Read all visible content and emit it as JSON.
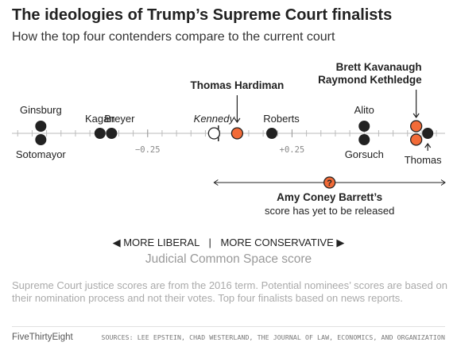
{
  "header": {
    "title": "The ideologies of Trump’s Supreme Court finalists",
    "subtitle": "How the top four contenders compare to the current court"
  },
  "chart_data": {
    "type": "scatter",
    "xlabel": "Judicial Common Space score",
    "xlim": [
      -0.72,
      0.78
    ],
    "ticks": [
      {
        "value": -0.25,
        "label": "−0.25"
      },
      {
        "value": 0.25,
        "label": "+0.25"
      }
    ],
    "justices": [
      {
        "name": "Ginsburg",
        "x": -0.62,
        "row": "top",
        "label_pos": "above",
        "group": "court"
      },
      {
        "name": "Sotomayor",
        "x": -0.62,
        "row": "bottom",
        "label_pos": "below",
        "group": "court"
      },
      {
        "name": "Kagan",
        "x": -0.415,
        "row": "middle",
        "label_pos": "above",
        "group": "court"
      },
      {
        "name": "Breyer",
        "x": -0.375,
        "row": "middle",
        "label_pos": "above",
        "group": "court"
      },
      {
        "name": "Kennedy",
        "x": -0.02,
        "row": "middle",
        "label_pos": "above",
        "group": "median"
      },
      {
        "name": "Thomas Hardiman",
        "x": 0.06,
        "row": "middle",
        "label_pos": "arrow",
        "group": "nominee"
      },
      {
        "name": "Roberts",
        "x": 0.18,
        "row": "middle",
        "label_pos": "above",
        "group": "court"
      },
      {
        "name": "Alito",
        "x": 0.5,
        "row": "top",
        "label_pos": "above",
        "group": "court"
      },
      {
        "name": "Gorsuch",
        "x": 0.5,
        "row": "bottom",
        "label_pos": "below",
        "group": "court"
      },
      {
        "name": "Brett Kavanaugh",
        "x": 0.68,
        "row": "top",
        "label_pos": "arrow",
        "group": "nominee"
      },
      {
        "name": "Raymond Kethledge",
        "x": 0.68,
        "row": "bottom",
        "label_pos": "arrow",
        "group": "nominee"
      },
      {
        "name": "Thomas",
        "x": 0.72,
        "row": "middle",
        "label_pos": "arrow-below",
        "group": "court"
      }
    ],
    "median_x": -0.005,
    "barrett": {
      "name_label": "Amy Coney Barrett’s",
      "caption": "score has yet to be released",
      "marker": "?",
      "range": [
        -0.02,
        0.78
      ]
    },
    "direction": {
      "liberal": "◀ MORE LIBERAL",
      "separator": "|",
      "conservative": "MORE CONSERVATIVE ▶"
    },
    "colors": {
      "court": "#222222",
      "nominee": "#f26b38",
      "median_fill": "#ffffff",
      "axis": "#bbbbbb"
    }
  },
  "notes": "Supreme Court justice scores are from the 2016 term. Potential nominees’ scores are based on their nomination process and not their votes. Top four finalists based on news reports.",
  "footer": {
    "brand": "FiveThirtyEight",
    "sources": "SOURCES: LEE EPSTEIN, CHAD WESTERLAND, THE JOURNAL OF LAW, ECONOMICS, AND ORGANIZATION"
  }
}
